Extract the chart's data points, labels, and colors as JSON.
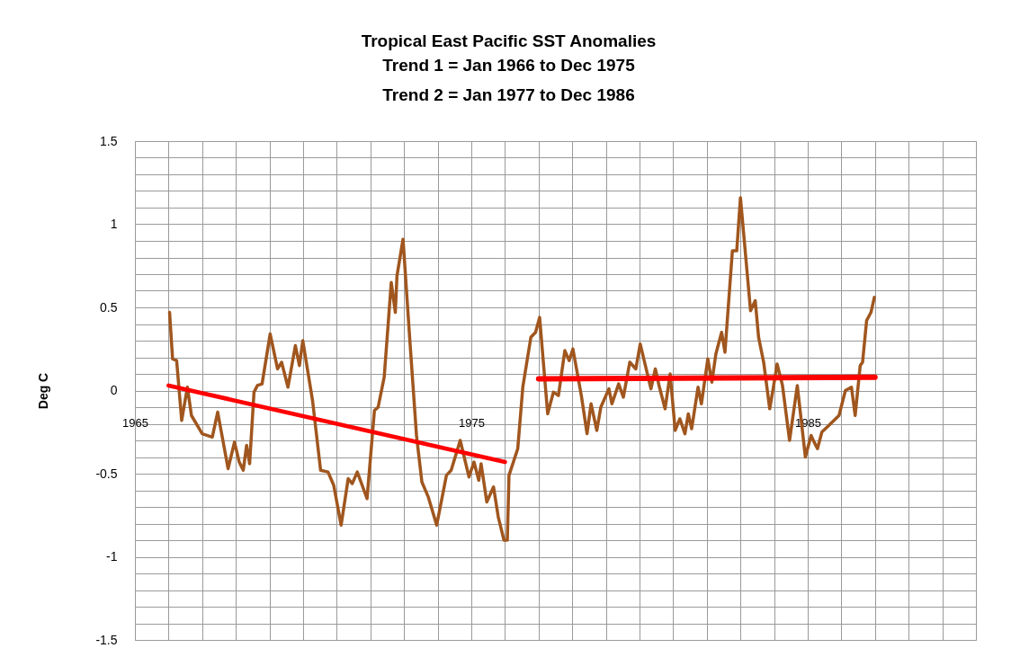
{
  "chart_data": {
    "type": "line",
    "title": "Tropical East Pacific SST Anomalies",
    "subtitle": "Trend 1 = Jan 1966 to Dec 1975\nTrend 2 = Jan 1977 to Dec 1986",
    "ylabel": "Deg C",
    "xlim": [
      1965,
      1990
    ],
    "ylim": [
      -1.5,
      1.5
    ],
    "xticks": [
      1965,
      {
        "value": 1966,
        "label": null
      },
      {
        "value": 1967,
        "label": null
      },
      {
        "value": 1968,
        "label": null
      },
      {
        "value": 1969,
        "label": null
      },
      {
        "value": 1970,
        "label": null
      },
      {
        "value": 1971,
        "label": null
      },
      {
        "value": 1972,
        "label": null
      },
      {
        "value": 1973,
        "label": null
      },
      {
        "value": 1974,
        "label": null
      },
      1975,
      {
        "value": 1976,
        "label": null
      },
      {
        "value": 1977,
        "label": null
      },
      {
        "value": 1978,
        "label": null
      },
      {
        "value": 1979,
        "label": null
      },
      {
        "value": 1980,
        "label": null
      },
      {
        "value": 1981,
        "label": null
      },
      {
        "value": 1982,
        "label": null
      },
      {
        "value": 1983,
        "label": null
      },
      {
        "value": 1984,
        "label": null
      },
      1985,
      {
        "value": 1986,
        "label": null
      },
      {
        "value": 1987,
        "label": null
      },
      {
        "value": 1988,
        "label": null
      },
      {
        "value": 1989,
        "label": null
      },
      {
        "value": 1990,
        "label": null
      }
    ],
    "yticks": [
      1.5,
      {
        "value": 1.4,
        "label": null
      },
      {
        "value": 1.3,
        "label": null
      },
      {
        "value": 1.2,
        "label": null
      },
      {
        "value": 1.1,
        "label": null
      },
      1,
      {
        "value": 0.9,
        "label": null
      },
      {
        "value": 0.8,
        "label": null
      },
      {
        "value": 0.7,
        "label": null
      },
      {
        "value": 0.6,
        "label": null
      },
      0.5,
      {
        "value": 0.4,
        "label": null
      },
      {
        "value": 0.3,
        "label": null
      },
      {
        "value": 0.2,
        "label": null
      },
      {
        "value": 0.1,
        "label": null
      },
      0,
      {
        "value": -0.1,
        "label": null
      },
      {
        "value": -0.2,
        "label": null
      },
      {
        "value": -0.3,
        "label": null
      },
      {
        "value": -0.4,
        "label": null
      },
      -0.5,
      {
        "value": -0.6,
        "label": null
      },
      {
        "value": -0.7,
        "label": null
      },
      {
        "value": -0.8,
        "label": null
      },
      {
        "value": -0.9,
        "label": null
      },
      -1,
      {
        "value": -1.1,
        "label": null
      },
      {
        "value": -1.2,
        "label": null
      },
      {
        "value": -1.3,
        "label": null
      },
      {
        "value": -1.4,
        "label": null
      },
      -1.5
    ],
    "grid": true,
    "series": [
      {
        "color": "#a0561e",
        "x": [
          1966.03,
          1966.12,
          1966.24,
          1966.39,
          1966.56,
          1966.68,
          1967.0,
          1967.3,
          1967.46,
          1967.77,
          1967.96,
          1968.1,
          1968.22,
          1968.32,
          1968.41,
          1968.54,
          1968.64,
          1968.78,
          1969.02,
          1969.24,
          1969.36,
          1969.55,
          1969.77,
          1969.89,
          1969.99,
          1970.28,
          1970.52,
          1970.74,
          1970.91,
          1971.13,
          1971.34,
          1971.46,
          1971.61,
          1971.9,
          1972.12,
          1972.23,
          1972.41,
          1972.62,
          1972.74,
          1972.79,
          1972.97,
          1973.18,
          1973.37,
          1973.53,
          1973.72,
          1973.97,
          1974.26,
          1974.4,
          1974.67,
          1974.93,
          1975.08,
          1975.22,
          1975.29,
          1975.46,
          1975.66,
          1975.8,
          1975.97,
          1976.07,
          1976.12,
          1976.38,
          1976.53,
          1976.77,
          1976.91,
          1977.03,
          1977.27,
          1977.44,
          1977.59,
          1977.78,
          1977.91,
          1978.02,
          1978.27,
          1978.44,
          1978.56,
          1978.73,
          1978.85,
          1979.09,
          1979.18,
          1979.38,
          1979.52,
          1979.71,
          1979.89,
          1980.02,
          1980.34,
          1980.47,
          1980.58,
          1980.76,
          1980.91,
          1981.06,
          1981.2,
          1981.35,
          1981.45,
          1981.55,
          1981.74,
          1981.84,
          1982.03,
          1982.15,
          1982.27,
          1982.44,
          1982.54,
          1982.76,
          1982.89,
          1983.0,
          1983.3,
          1983.44,
          1983.54,
          1983.69,
          1983.87,
          1983.98,
          1984.09,
          1984.25,
          1984.46,
          1984.69,
          1984.93,
          1985.1,
          1985.19,
          1985.29,
          1985.42,
          1985.63,
          1985.93,
          1986.12,
          1986.3,
          1986.41,
          1986.56,
          1986.63,
          1986.75,
          1986.88,
          1986.98
        ],
        "values": [
          0.47,
          0.19,
          0.18,
          -0.18,
          0.02,
          -0.15,
          -0.26,
          -0.28,
          -0.13,
          -0.47,
          -0.31,
          -0.43,
          -0.48,
          -0.33,
          -0.44,
          -0.01,
          0.03,
          0.04,
          0.34,
          0.13,
          0.17,
          0.02,
          0.27,
          0.15,
          0.3,
          -0.06,
          -0.48,
          -0.49,
          -0.57,
          -0.81,
          -0.53,
          -0.56,
          -0.49,
          -0.65,
          -0.12,
          -0.1,
          0.08,
          0.65,
          0.47,
          0.69,
          0.91,
          0.28,
          -0.27,
          -0.55,
          -0.64,
          -0.81,
          -0.51,
          -0.48,
          -0.3,
          -0.52,
          -0.43,
          -0.54,
          -0.44,
          -0.67,
          -0.58,
          -0.76,
          -0.9,
          -0.9,
          -0.51,
          -0.35,
          0.02,
          0.32,
          0.35,
          0.44,
          -0.14,
          -0.01,
          -0.03,
          0.24,
          0.18,
          0.25,
          -0.03,
          -0.26,
          -0.08,
          -0.24,
          -0.1,
          0.01,
          -0.08,
          0.04,
          -0.04,
          0.17,
          0.13,
          0.28,
          0.01,
          0.13,
          0.03,
          -0.11,
          0.1,
          -0.24,
          -0.17,
          -0.26,
          -0.14,
          -0.23,
          0.02,
          -0.08,
          0.19,
          0.05,
          0.22,
          0.35,
          0.23,
          0.84,
          0.84,
          1.16,
          0.48,
          0.54,
          0.32,
          0.17,
          -0.11,
          0.02,
          0.16,
          0.03,
          -0.3,
          0.03,
          -0.4,
          -0.27,
          -0.31,
          -0.35,
          -0.25,
          -0.21,
          -0.15,
          0,
          0.02,
          -0.15,
          0.15,
          0.17,
          0.42,
          0.47,
          0.56
        ]
      },
      {
        "color": "#ff0000",
        "x": [
          1966.0,
          1976.0
        ],
        "values": [
          0.03,
          -0.43
        ]
      },
      {
        "color": "#ff0000",
        "x": [
          1977.0,
          1987.0
        ],
        "values": [
          0.07,
          0.08
        ]
      }
    ]
  }
}
